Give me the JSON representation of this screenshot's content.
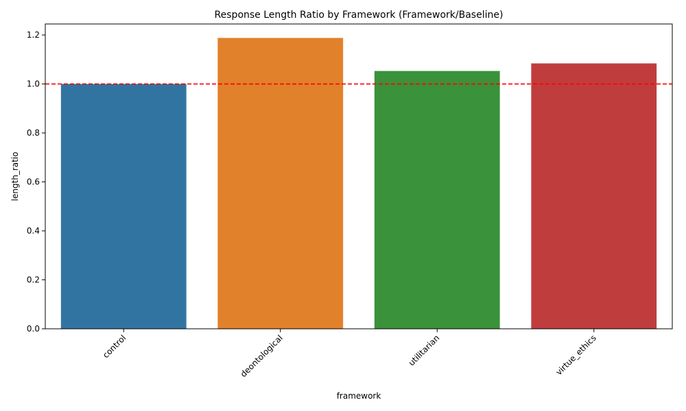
{
  "chart_data": {
    "type": "bar",
    "title": "Response Length Ratio by Framework (Framework/Baseline)",
    "xlabel": "framework",
    "ylabel": "length_ratio",
    "categories": [
      "control",
      "deontological",
      "utilitarian",
      "virtue_ethics"
    ],
    "values": [
      1.0,
      1.188,
      1.053,
      1.084
    ],
    "colors": [
      "#3274a1",
      "#e1812c",
      "#3a923a",
      "#c03d3e"
    ],
    "ylim": [
      0,
      1.245
    ],
    "yticks": [
      "0.0",
      "0.2",
      "0.4",
      "0.6",
      "0.8",
      "1.0",
      "1.2"
    ],
    "reference_line": {
      "y": 1.0,
      "color": "#ff0000",
      "style": "dashed"
    },
    "grid": false,
    "legend": "none",
    "xtick_rotation": 45
  }
}
